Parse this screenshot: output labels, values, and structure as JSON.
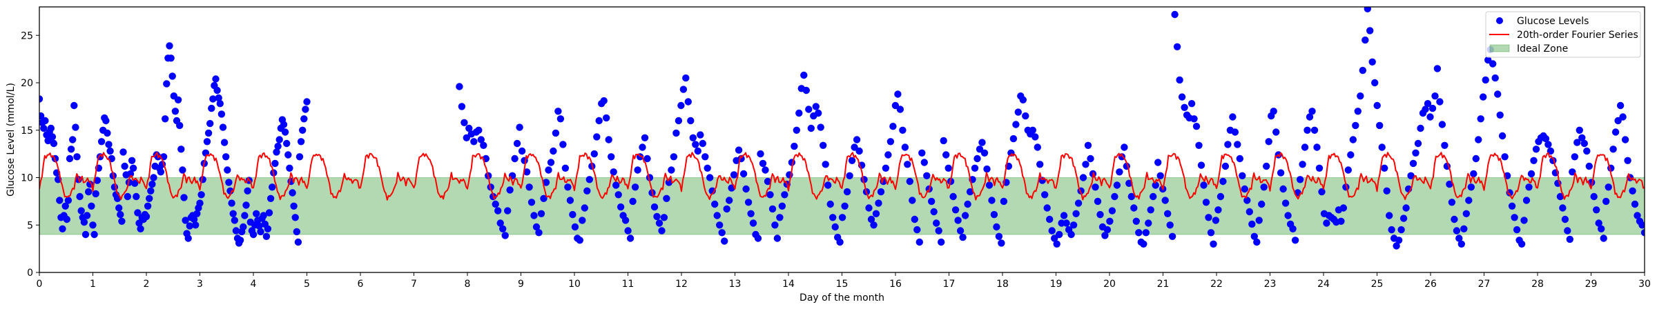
{
  "chart_data": {
    "type": "scatter",
    "title": "",
    "xlabel": "Day of the month",
    "ylabel": "Glucose Level (mmol/L)",
    "xlim": [
      0,
      30
    ],
    "ylim": [
      0,
      28
    ],
    "xticks": [
      "0",
      "1",
      "2",
      "3",
      "4",
      "5",
      "6",
      "7",
      "8",
      "9",
      "10",
      "11",
      "12",
      "13",
      "14",
      "15",
      "16",
      "17",
      "18",
      "19",
      "20",
      "21",
      "22",
      "23",
      "24",
      "25",
      "26",
      "27",
      "28",
      "29",
      "30"
    ],
    "yticks": [
      "0",
      "5",
      "10",
      "15",
      "20",
      "25"
    ],
    "grid": false,
    "legend": {
      "placement": "top-right",
      "entries": [
        {
          "label": "Glucose Levels",
          "kind": "marker",
          "color": "#0000ff"
        },
        {
          "label": "20th-order Fourier Series",
          "kind": "line",
          "color": "#ff0000"
        },
        {
          "label": "Ideal Zone",
          "kind": "patch",
          "color": "#008000",
          "alpha": 0.3
        }
      ]
    },
    "ideal_zone": {
      "ymin": 4,
      "ymax": 10,
      "color": "#008000",
      "alpha": 0.3
    },
    "fourier_series": {
      "name": "20th-order Fourier Series",
      "color": "#ff0000",
      "period_days": 1,
      "x_range": [
        0,
        30
      ],
      "daily_profile_x": [
        0,
        0.05,
        0.1,
        0.15,
        0.2,
        0.25,
        0.3,
        0.35,
        0.4,
        0.45,
        0.5,
        0.55,
        0.6,
        0.65,
        0.7,
        0.75,
        0.8,
        0.85,
        0.9,
        0.95,
        1.0
      ],
      "daily_profile_y": [
        8.8,
        10.3,
        12.2,
        12.3,
        12.5,
        12.2,
        11.9,
        11.0,
        9.8,
        8.5,
        7.9,
        8.0,
        8.5,
        9.0,
        10.4,
        9.7,
        10.0,
        9.4,
        9.9,
        9.5,
        8.8
      ]
    },
    "series": [
      {
        "name": "Glucose Levels",
        "color": "#0000ff",
        "segments": [
          {
            "x_start": 0.0,
            "x_end": 5.0,
            "values": [
              18.3,
              16.5,
              15.8,
              15.2,
              16.0,
              14.5,
              13.9,
              14.8,
              15.2,
              14.3,
              13.6,
              12.0,
              10.5,
              9.8,
              7.6,
              5.8,
              4.6,
              6.0,
              7.0,
              5.6,
              7.6,
              12.0,
              13.0,
              14.0,
              17.6,
              15.3,
              12.2,
              9.8,
              8.0,
              6.5,
              5.8,
              5.3,
              4.0,
              6.0,
              8.5,
              9.3,
              7.0,
              5.0,
              4.0,
              8.3,
              9.7,
              11.0,
              12.2,
              13.8,
              15.0,
              16.3,
              16.0,
              14.7,
              13.5,
              12.8,
              12.0,
              10.2,
              9.0,
              8.2,
              7.8,
              6.8,
              6.1,
              5.4,
              12.7,
              11.2,
              10.3,
              8.0,
              9.5,
              10.4,
              11.8,
              11.0,
              9.4,
              8.0,
              6.3,
              5.2,
              4.6,
              5.8,
              5.6,
              6.1,
              5.9,
              7.0,
              7.8,
              8.6,
              9.3,
              10.0,
              11.2,
              12.4,
              12.2,
              11.0,
              10.6,
              11.4,
              12.2,
              16.2,
              19.9,
              22.6,
              23.9,
              22.6,
              20.7,
              18.6,
              17.0,
              16.0,
              18.2,
              15.5,
              13.0,
              10.8,
              7.9,
              5.5,
              4.1,
              3.6,
              4.9,
              5.8,
              6.0,
              5.6,
              5.0,
              6.2,
              6.8,
              7.3,
              8.2,
              9.8,
              11.5,
              12.6,
              13.8,
              14.7,
              15.7,
              17.3,
              18.3,
              19.7,
              20.4,
              19.2,
              18.4,
              17.8,
              16.7,
              15.3,
              13.7,
              12.2,
              10.8,
              9.5,
              8.6,
              7.3,
              6.2,
              5.5,
              4.4,
              3.6,
              3.1,
              3.4,
              4.3,
              4.8,
              6.0,
              7.1,
              8.6,
              9.7,
              5.3,
              4.4,
              4.0,
              5.0,
              6.2,
              5.5,
              4.9,
              4.3,
              5.7,
              6.0,
              5.1,
              3.8,
              4.6,
              6.3,
              7.8,
              9.0,
              10.5,
              11.5,
              12.7,
              13.3,
              14.0,
              15.2,
              16.1,
              15.6,
              14.8,
              13.6,
              12.4,
              11.0,
              9.6,
              8.4,
              7.0,
              5.8,
              4.3,
              3.2,
              12.2,
              13.8,
              15.0,
              16.2,
              17.2,
              18.0
            ]
          },
          {
            "x_start": 7.85,
            "x_end": 30.0,
            "values": [
              19.6,
              17.5,
              15.8,
              14.2,
              15.2,
              14.6,
              13.8,
              14.8,
              15.0,
              14.0,
              13.4,
              12.0,
              10.2,
              9.0,
              8.0,
              7.2,
              6.5,
              5.2,
              4.6,
              3.9,
              6.5,
              8.7,
              10.2,
              12.0,
              13.6,
              15.3,
              12.8,
              11.8,
              10.6,
              9.0,
              7.4,
              6.0,
              4.8,
              4.2,
              6.2,
              7.8,
              9.5,
              10.8,
              11.6,
              12.8,
              14.7,
              17.0,
              16.2,
              13.5,
              11.0,
              9.0,
              7.6,
              6.1,
              4.8,
              3.6,
              3.4,
              5.5,
              6.8,
              8.6,
              9.8,
              11.2,
              12.5,
              14.3,
              16.0,
              17.8,
              18.1,
              16.3,
              14.0,
              12.2,
              10.6,
              9.2,
              8.2,
              6.9,
              6.0,
              5.5,
              4.4,
              3.6,
              7.5,
              9.0,
              10.8,
              12.2,
              13.2,
              14.2,
              12.0,
              10.0,
              8.4,
              6.9,
              5.9,
              5.2,
              4.4,
              5.8,
              7.8,
              9.5,
              10.8,
              12.2,
              14.7,
              16.0,
              17.6,
              19.3,
              20.5,
              18.0,
              16.0,
              14.2,
              13.5,
              12.8,
              14.5,
              13.6,
              12.2,
              11.0,
              10.0,
              8.6,
              7.2,
              6.0,
              5.0,
              4.2,
              3.3,
              6.7,
              7.6,
              8.9,
              10.3,
              11.8,
              12.9,
              12.0,
              10.4,
              8.8,
              7.4,
              6.2,
              5.2,
              4.0,
              3.6,
              12.5,
              11.5,
              10.8,
              9.6,
              8.2,
              6.7,
              5.0,
              3.6,
              5.8,
              7.0,
              8.2,
              9.3,
              10.3,
              11.6,
              13.3,
              15.0,
              16.8,
              19.4,
              20.8,
              19.2,
              17.2,
              15.2,
              16.5,
              17.5,
              16.8,
              15.3,
              13.4,
              11.4,
              9.2,
              7.2,
              5.8,
              4.8,
              3.7,
              3.2,
              5.8,
              7.0,
              8.5,
              10.2,
              11.8,
              13.2,
              14.0,
              12.8,
              11.3,
              9.8,
              8.5,
              6.8,
              5.6,
              5.0,
              6.2,
              7.3,
              8.5,
              9.6,
              11.0,
              12.4,
              13.8,
              15.4,
              17.6,
              18.8,
              17.2,
              15.0,
              13.2,
              11.4,
              9.6,
              7.6,
              5.6,
              4.5,
              3.2,
              12.6,
              11.6,
              10.2,
              8.8,
              7.5,
              6.4,
              5.2,
              4.4,
              3.2,
              13.9,
              12.4,
              11.0,
              9.6,
              8.0,
              6.6,
              5.5,
              4.4,
              3.7,
              6.0,
              7.2,
              8.5,
              9.8,
              11.0,
              12.0,
              13.0,
              13.7,
              12.6,
              10.9,
              9.2,
              7.6,
              6.1,
              4.8,
              3.8,
              3.1,
              7.5,
              9.5,
              11.2,
              12.6,
              14.1,
              15.6,
              16.9,
              18.6,
              18.2,
              16.5,
              15.0,
              14.6,
              15.0,
              14.3,
              13.2,
              11.4,
              9.7,
              8.2,
              6.8,
              5.6,
              4.4,
              3.6,
              3.0,
              4.0,
              5.2,
              6.0,
              5.2,
              4.5,
              4.0,
              5.0,
              6.2,
              7.3,
              8.6,
              10.0,
              11.4,
              13.4,
              12.0,
              10.4,
              9.0,
              7.5,
              6.1,
              4.8,
              3.9,
              4.5,
              5.4,
              6.5,
              8.0,
              9.2,
              10.6,
              12.2,
              13.2,
              11.2,
              9.4,
              8.0,
              6.8,
              5.4,
              4.2,
              3.2,
              3.0,
              4.2,
              5.2,
              6.6,
              8.0,
              9.2,
              11.6,
              10.2,
              8.8,
              7.6,
              6.2,
              5.0,
              3.8,
              27.2,
              23.8,
              20.3,
              18.5,
              17.4,
              16.6,
              16.3,
              17.8,
              16.2,
              15.4,
              13.4,
              11.3,
              9.2,
              7.4,
              5.8,
              4.2,
              3.0,
              5.5,
              6.6,
              8.0,
              9.6,
              11.2,
              13.5,
              15.0,
              16.4,
              14.8,
              13.5,
              12.0,
              10.2,
              8.8,
              7.6,
              6.4,
              5.1,
              3.8,
              3.2,
              5.5,
              7.2,
              9.0,
              11.2,
              13.8,
              16.5,
              17.0,
              14.8,
              12.4,
              10.5,
              8.8,
              7.3,
              6.0,
              5.1,
              4.6,
              3.4,
              8.4,
              9.8,
              11.4,
              13.2,
              15.0,
              16.4,
              17.0,
              15.0,
              13.2,
              11.0,
              8.5,
              6.2,
              5.2,
              6.0,
              5.8,
              5.6,
              5.3,
              6.6,
              5.4,
              6.8,
              9.0,
              10.8,
              12.4,
              14.0,
              15.5,
              17.0,
              18.6,
              21.3,
              24.5,
              27.8,
              25.5,
              22.2,
              20.0,
              17.6,
              15.5,
              13.2,
              11.0,
              8.6,
              6.0,
              4.5,
              3.6,
              2.8,
              3.4,
              4.5,
              5.7,
              6.8,
              8.8,
              10.2,
              11.5,
              12.6,
              13.6,
              15.2,
              16.8,
              17.2,
              17.8,
              16.4,
              17.3,
              18.6,
              21.5,
              18.0,
              15.6,
              13.4,
              11.2,
              9.3,
              7.4,
              5.6,
              4.4,
              3.6,
              3.0,
              4.6,
              6.2,
              7.6,
              9.0,
              10.4,
              12.0,
              14.0,
              16.2,
              18.5,
              20.3,
              22.4,
              23.5,
              22.0,
              20.5,
              18.8,
              16.6,
              14.4,
              12.2,
              10.2,
              8.4,
              7.0,
              5.8,
              4.5,
              3.4,
              3.0,
              5.5,
              7.6,
              9.0,
              10.4,
              11.8,
              13.0,
              13.8,
              14.2,
              14.4,
              14.1,
              13.5,
              12.8,
              11.8,
              10.5,
              9.4,
              8.0,
              6.8,
              5.6,
              4.4,
              3.5,
              10.6,
              12.2,
              13.7,
              15.0,
              14.2,
              13.6,
              12.8,
              11.2,
              9.5,
              8.0,
              6.6,
              5.2,
              4.6,
              3.6,
              7.5,
              9.0,
              11.0,
              13.0,
              14.8,
              16.0,
              17.6,
              16.4,
              14.0,
              11.8,
              10.0,
              8.6,
              7.2,
              6.0,
              5.4,
              5.0,
              4.2
            ]
          }
        ]
      }
    ]
  }
}
